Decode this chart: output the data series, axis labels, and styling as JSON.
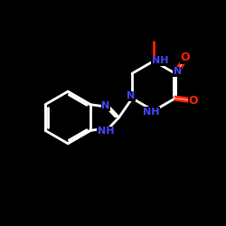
{
  "background_color": "#000000",
  "bond_color": "#ffffff",
  "N_color": "#4444ff",
  "O_color": "#ff2200",
  "figsize": [
    2.5,
    2.5
  ],
  "dpi": 100,
  "xlim": [
    0,
    10
  ],
  "ylim": [
    0,
    10
  ]
}
